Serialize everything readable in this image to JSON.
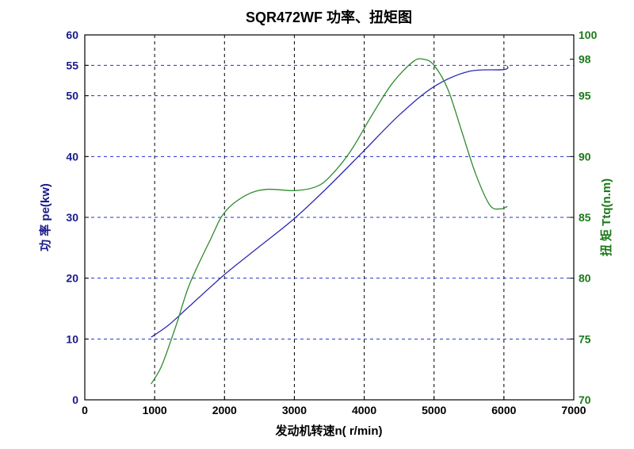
{
  "chart_data": {
    "type": "line",
    "title": "SQR472WF 功率、扭矩图",
    "xlabel": "发动机转速n( r/min)",
    "ylabel_left": "功 率 pe(kw)",
    "ylabel_right": "扭 矩 Ttq(n.m)",
    "xlim": [
      0,
      7000
    ],
    "ylim_left": [
      0,
      60
    ],
    "ylim_right": [
      70,
      100
    ],
    "x_ticks": [
      0,
      1000,
      2000,
      3000,
      4000,
      5000,
      6000,
      7000
    ],
    "y_ticks_left": [
      0,
      10,
      20,
      30,
      40,
      50,
      55,
      60
    ],
    "y_ticks_right": [
      70,
      75,
      80,
      85,
      90,
      95,
      98,
      100
    ],
    "grid": true,
    "colors": {
      "power": "#2b2bb0",
      "torque": "#2e8b2e",
      "axis_left": "#1a1a8c",
      "axis_right": "#1a7a1a",
      "grid_h": "#2233cc",
      "grid_v": "#000000"
    },
    "series": [
      {
        "axis": "left",
        "x": [
          950,
          1200,
          1500,
          2000,
          2500,
          3000,
          3500,
          4000,
          4500,
          5000,
          5500,
          6000,
          6050
        ],
        "values": [
          10.3,
          12.3,
          15.4,
          20.6,
          25.2,
          29.8,
          35.2,
          41.0,
          46.8,
          51.5,
          54.0,
          54.3,
          54.9
        ]
      },
      {
        "axis": "right",
        "x": [
          950,
          1100,
          1300,
          1500,
          1800,
          2000,
          2300,
          2600,
          3000,
          3300,
          3500,
          3800,
          4100,
          4400,
          4700,
          4850,
          5000,
          5200,
          5400,
          5600,
          5800,
          5950,
          6050
        ],
        "values": [
          71.3,
          72.8,
          76.0,
          79.5,
          83.2,
          85.4,
          86.8,
          87.3,
          87.2,
          87.5,
          88.3,
          90.4,
          93.3,
          96.0,
          97.8,
          98.0,
          97.5,
          95.5,
          92.0,
          88.5,
          86.0,
          85.7,
          85.9
        ]
      }
    ]
  }
}
